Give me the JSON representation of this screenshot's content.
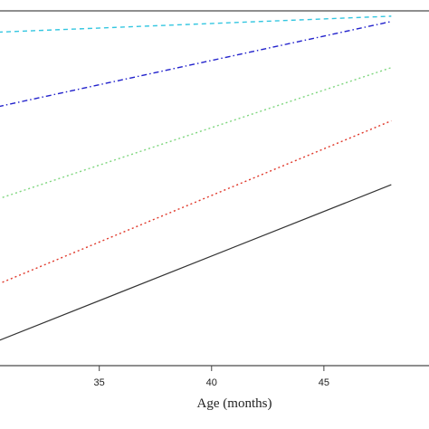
{
  "chart_data": {
    "type": "line",
    "xlabel": "Age (months)",
    "ylabel": "",
    "xlim": [
      30.5,
      49.8
    ],
    "ylim": [
      0,
      1
    ],
    "xticks": [
      35,
      40,
      45
    ],
    "grid": false,
    "legend": "none",
    "series": [
      {
        "x": [
          30.5,
          48
        ],
        "values": [
          0.07,
          0.51
        ],
        "color": "#333333",
        "dash": "solid"
      },
      {
        "x": [
          30.5,
          48
        ],
        "values": [
          0.23,
          0.69
        ],
        "color": "#e0392b",
        "dash": "dotted"
      },
      {
        "x": [
          30.5,
          48
        ],
        "values": [
          0.47,
          0.84
        ],
        "color": "#7fd67f",
        "dash": "dotted"
      },
      {
        "x": [
          30.5,
          48
        ],
        "values": [
          0.73,
          0.97
        ],
        "color": "#2222cc",
        "dash": "dashdot"
      },
      {
        "x": [
          30.5,
          48
        ],
        "values": [
          0.94,
          0.985
        ],
        "color": "#33c6e0",
        "dash": "dashed"
      }
    ]
  }
}
